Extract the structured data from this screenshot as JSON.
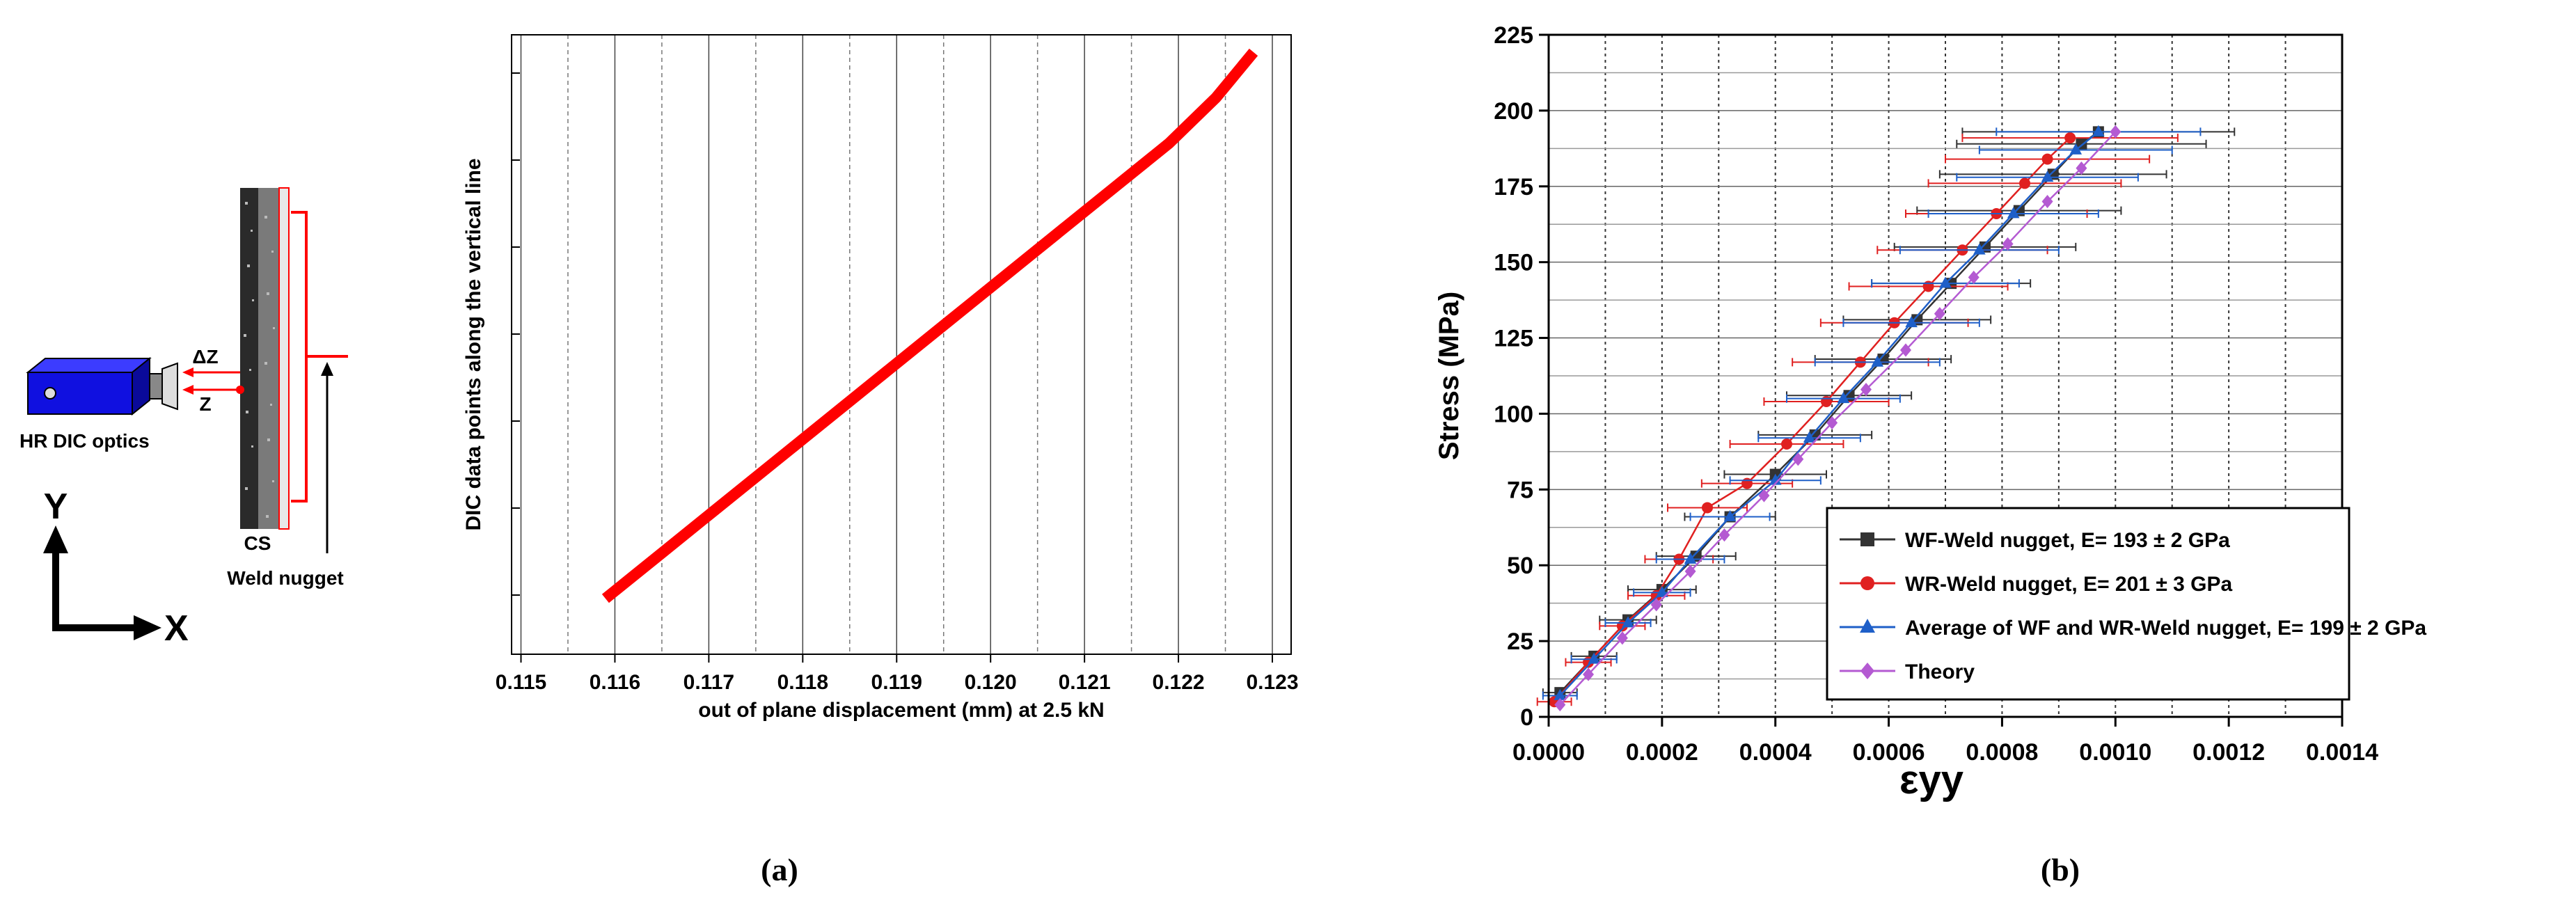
{
  "panel_a": {
    "caption": "(a)",
    "setup": {
      "camera_label": "HR DIC optics",
      "delta_z_label": "ΔZ",
      "z_label": "Z",
      "cs_label": "CS",
      "weld_label": "Weld nugget",
      "y_axis_label": "Y",
      "x_axis_label": "X"
    }
  },
  "panel_b": {
    "caption": "(b)"
  },
  "colors": {
    "red_line": "#ff0000",
    "wf": "#333333",
    "wr": "#e02020",
    "avg": "#1e5fc8",
    "theory": "#b45ad2",
    "camera_blue": "#1010e0"
  },
  "icons": [
    "camera-icon",
    "axes-icon",
    "weld-specimen-icon"
  ],
  "chart_data": [
    {
      "type": "line",
      "title": "",
      "xlabel": "out of plane displacement (mm) at 2.5 kN",
      "ylabel": "DIC data points along the vertical line",
      "xlim": [
        0.1149,
        0.1232
      ],
      "x_ticks": [
        "0.115",
        "0.116",
        "0.117",
        "0.118",
        "0.119",
        "0.120",
        "0.121",
        "0.122",
        "0.123"
      ],
      "grid": "vertical",
      "y_ticks_labeled": false,
      "series": [
        {
          "x": [
            0.1159,
            0.1165,
            0.1171,
            0.1177,
            0.1183,
            0.1189,
            0.1195,
            0.1201,
            0.1207,
            0.1213,
            0.1219,
            0.1224,
            0.1228
          ],
          "y": [
            0.0,
            0.0833,
            0.1667,
            0.25,
            0.3333,
            0.4167,
            0.5,
            0.5833,
            0.6667,
            0.75,
            0.8333,
            0.9167,
            1.0
          ]
        }
      ]
    },
    {
      "type": "scatter",
      "title": "",
      "xlabel": "εyy",
      "ylabel": "Stress (MPa)",
      "xlim": [
        0.0,
        0.0014
      ],
      "ylim": [
        0,
        225
      ],
      "x_ticks": [
        "0.0000",
        "0.0002",
        "0.0004",
        "0.0006",
        "0.0008",
        "0.0010",
        "0.0012",
        "0.0014"
      ],
      "y_ticks": [
        "0",
        "25",
        "50",
        "75",
        "100",
        "125",
        "150",
        "175",
        "200",
        "225"
      ],
      "grid": "dotted",
      "legend_position": "bottom-right",
      "series": [
        {
          "name": "WF-Weld nugget, E= 193 ± 2 GPa",
          "marker": "square",
          "x": [
            2e-05,
            8e-05,
            0.00014,
            0.0002,
            0.00026,
            0.00032,
            0.0004,
            0.00047,
            0.00053,
            0.00059,
            0.00065,
            0.00071,
            0.00077,
            0.00083,
            0.00089,
            0.00094,
            0.00097
          ],
          "y": [
            8,
            20,
            32,
            42,
            53,
            66,
            80,
            93,
            106,
            118,
            131,
            143,
            155,
            167,
            179,
            189,
            193
          ],
          "xerr": [
            3e-05,
            4e-05,
            5e-05,
            6e-05,
            7e-05,
            8e-05,
            9e-05,
            0.0001,
            0.00011,
            0.00012,
            0.00013,
            0.00014,
            0.00016,
            0.00018,
            0.0002,
            0.00022,
            0.00024
          ]
        },
        {
          "name": "WR-Weld nugget, E= 201 ± 3 GPa",
          "marker": "circle",
          "x": [
            1e-05,
            7e-05,
            0.00013,
            0.00019,
            0.00023,
            0.00028,
            0.00035,
            0.00042,
            0.00049,
            0.00055,
            0.00061,
            0.00067,
            0.00073,
            0.00079,
            0.00084,
            0.00088,
            0.00092
          ],
          "y": [
            5,
            18,
            30,
            40,
            52,
            69,
            77,
            90,
            104,
            117,
            130,
            142,
            154,
            166,
            176,
            184,
            191
          ],
          "xerr": [
            3e-05,
            4e-05,
            4e-05,
            5e-05,
            6e-05,
            7e-05,
            8e-05,
            0.0001,
            0.00011,
            0.00012,
            0.00013,
            0.00014,
            0.00015,
            0.00016,
            0.00017,
            0.00018,
            0.00019
          ]
        },
        {
          "name": "Average of WF and WR-Weld nugget, E= 199 ± 2 GPa",
          "marker": "triangle",
          "x": [
            2e-05,
            8e-05,
            0.00014,
            0.0002,
            0.00025,
            0.00032,
            0.0004,
            0.00046,
            0.00052,
            0.00058,
            0.00064,
            0.0007,
            0.00076,
            0.00082,
            0.00088,
            0.00093,
            0.00097
          ],
          "y": [
            7,
            19,
            31,
            41,
            52,
            66,
            78,
            92,
            105,
            117,
            130,
            143,
            154,
            166,
            178,
            187,
            193
          ],
          "xerr": [
            3e-05,
            4e-05,
            4e-05,
            5e-05,
            6e-05,
            7e-05,
            8e-05,
            9e-05,
            0.0001,
            0.00011,
            0.00012,
            0.00013,
            0.00014,
            0.00015,
            0.00016,
            0.00017,
            0.00018
          ]
        },
        {
          "name": "Theory",
          "marker": "diamond",
          "x": [
            2e-05,
            7e-05,
            0.00013,
            0.00019,
            0.00025,
            0.00031,
            0.00038,
            0.00044,
            0.0005,
            0.00056,
            0.00063,
            0.00069,
            0.00075,
            0.00081,
            0.00088,
            0.00094,
            0.001
          ],
          "y": [
            4,
            14,
            26,
            37,
            48,
            60,
            73,
            85,
            97,
            108,
            121,
            133,
            145,
            156,
            170,
            181,
            193
          ],
          "xerr": []
        }
      ]
    }
  ]
}
